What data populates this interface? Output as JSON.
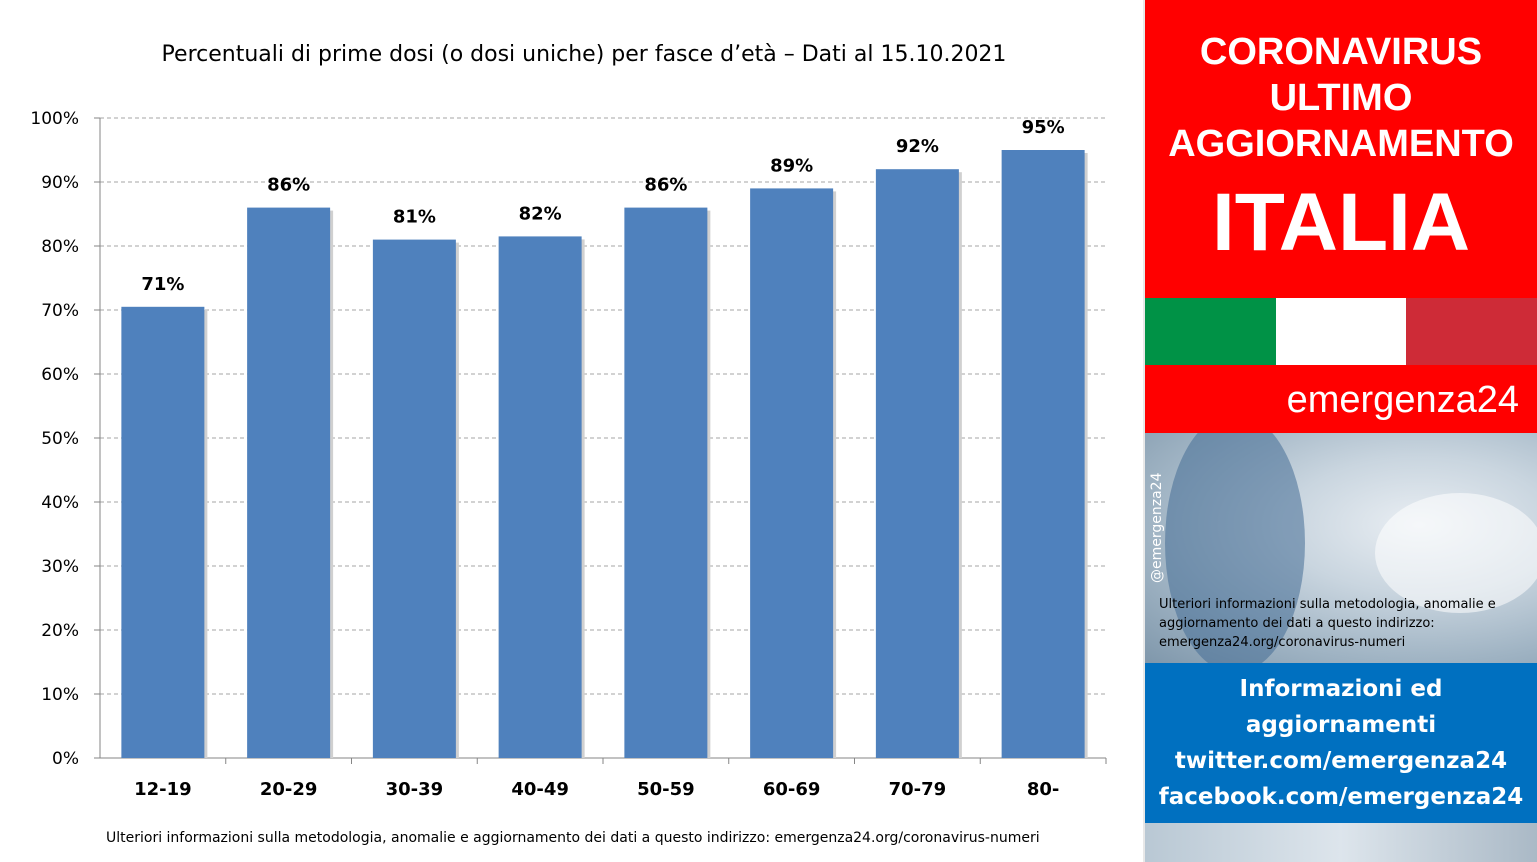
{
  "chart_data": {
    "type": "bar",
    "title": "Percentuali di prime dosi (o dosi uniche) per fasce d’età – Dati al 15.10.2021",
    "categories": [
      "12-19",
      "20-29",
      "30-39",
      "40-49",
      "50-59",
      "60-69",
      "70-79",
      "80-"
    ],
    "values": [
      70.5,
      86,
      81,
      81.5,
      86,
      89,
      92,
      95
    ],
    "data_labels": [
      "71%",
      "86%",
      "81%",
      "82%",
      "86%",
      "89%",
      "92%",
      "95%"
    ],
    "y_ticks": [
      "0%",
      "10%",
      "20%",
      "30%",
      "40%",
      "50%",
      "60%",
      "70%",
      "80%",
      "90%",
      "100%"
    ],
    "ylim": [
      0,
      100
    ],
    "xlabel": "",
    "ylabel": "",
    "grid": true,
    "bar_color": "#4f81bd"
  },
  "footer_note": "Ulteriori informazioni sulla metodologia, anomalie e aggiornamento dei dati a questo indirizzo: emergenza24.org/coronavirus-numeri",
  "side": {
    "heading_lines": [
      "CORONAVIRUS",
      "ULTIMO",
      "AGGIORNAMENTO"
    ],
    "country": "ITALIA",
    "flag_colors": [
      "#009246",
      "#ffffff",
      "#ce2b37"
    ],
    "brand": "emergenza24",
    "handle": "@emergenza24",
    "note_text": "Ulteriori informazioni sulla metodologia, anomalie e aggiornamento dei dati a questo indirizzo: emergenza24.org/coronavirus-numeri",
    "info_lines": [
      "Informazioni ed",
      "aggiornamenti",
      "twitter.com/emergenza24",
      "facebook.com/emergenza24"
    ],
    "accent_red": "#ff0000",
    "accent_blue": "#0070c0"
  }
}
